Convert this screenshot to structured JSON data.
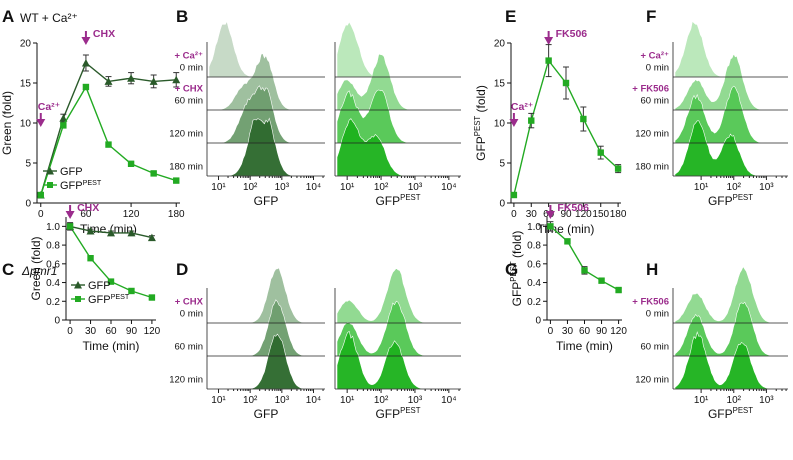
{
  "colors": {
    "purple": "#9b2c8c",
    "gfp": "#2a5a2a",
    "pest": "#22aa22",
    "axis": "#111111",
    "hist_gfp": [
      "#c6d9c6",
      "#9cbe9c",
      "#6f9e6f",
      "#2f6b2f"
    ],
    "hist_pest": [
      "#b9e8b9",
      "#8fd98f",
      "#55c855",
      "#1fb31f"
    ]
  },
  "chart_data": [
    {
      "id": "A",
      "type": "line",
      "panel_label": "A",
      "title": "WT + Ca²⁺",
      "xlabel": "Time (min)",
      "ylabel": "Green (fold)",
      "xlim": [
        -5,
        185
      ],
      "ylim": [
        0,
        20
      ],
      "xticks": [
        "0",
        "60",
        "120",
        "180"
      ],
      "yticks": [
        "0",
        "5",
        "10",
        "15",
        "20"
      ],
      "annotations": [
        {
          "text": "Ca²⁺",
          "x": 0
        },
        {
          "text": "CHX",
          "x": 60
        }
      ],
      "series": [
        {
          "name": "GFP",
          "legend_label": "GFP",
          "marker": "triangle",
          "x": [
            0,
            30,
            60,
            90,
            120,
            150,
            180
          ],
          "y": [
            1.0,
            10.6,
            17.5,
            15.2,
            15.6,
            15.2,
            15.4
          ],
          "err": [
            0.3,
            0.5,
            1.0,
            0.6,
            0.7,
            0.8,
            0.9
          ]
        },
        {
          "name": "GFPPEST",
          "legend_label": "GFP",
          "legend_sup": "PEST",
          "marker": "square",
          "x": [
            0,
            30,
            60,
            90,
            120,
            150,
            180
          ],
          "y": [
            1.0,
            9.7,
            14.5,
            7.3,
            4.9,
            3.7,
            2.8
          ],
          "err": [
            0.2,
            0.3,
            0.3,
            0.3,
            0.2,
            0.2,
            0.2
          ]
        }
      ]
    },
    {
      "id": "C",
      "type": "line",
      "panel_label": "C",
      "title": "Δpmr1",
      "xlabel": "Time (min)",
      "ylabel": "Green (fold)",
      "xlim": [
        -6,
        126
      ],
      "ylim": [
        0,
        1.1
      ],
      "xticks": [
        "0",
        "30",
        "60",
        "90",
        "120"
      ],
      "yticks": [
        "0",
        "0.2",
        "0.4",
        "0.6",
        "0.8",
        "1.0"
      ],
      "annotations": [
        {
          "text": "CHX",
          "x": 0
        }
      ],
      "series": [
        {
          "name": "GFP",
          "legend_label": "GFP",
          "marker": "triangle",
          "x": [
            0,
            30,
            60,
            90,
            120
          ],
          "y": [
            1.0,
            0.95,
            0.93,
            0.93,
            0.88
          ],
          "err": [
            0.03,
            0.02,
            0.02,
            0.02,
            0.02
          ]
        },
        {
          "name": "GFPPEST",
          "legend_label": "GFP",
          "legend_sup": "PEST",
          "marker": "square",
          "x": [
            0,
            30,
            60,
            90,
            120
          ],
          "y": [
            1.0,
            0.66,
            0.41,
            0.31,
            0.24
          ],
          "err": [
            0.04,
            0.02,
            0.02,
            0.02,
            0.02
          ]
        }
      ]
    },
    {
      "id": "E",
      "type": "line",
      "panel_label": "E",
      "title": "",
      "xlabel": "Time (min)",
      "ylabel": "GFP",
      "ylabel_sup": "PEST",
      "ylabel_tail": " (fold)",
      "xlim": [
        -5,
        185
      ],
      "ylim": [
        0,
        20
      ],
      "xticks": [
        "0",
        "30",
        "60",
        "90",
        "120",
        "150",
        "180"
      ],
      "yticks": [
        "0",
        "5",
        "10",
        "15",
        "20"
      ],
      "annotations": [
        {
          "text": "Ca²⁺",
          "x": 0
        },
        {
          "text": "FK506",
          "x": 60
        }
      ],
      "series": [
        {
          "name": "GFPPEST",
          "marker": "square",
          "x": [
            0,
            30,
            60,
            90,
            120,
            150,
            180
          ],
          "y": [
            1.0,
            10.3,
            17.8,
            15.0,
            10.5,
            6.3,
            4.3
          ],
          "err": [
            0.3,
            0.9,
            2.0,
            2.0,
            1.5,
            0.8,
            0.5
          ]
        }
      ]
    },
    {
      "id": "G",
      "type": "line",
      "panel_label": "G",
      "title": "",
      "xlabel": "Time (min)",
      "ylabel": "GFP",
      "ylabel_sup": "PEST",
      "ylabel_tail": " (fold)",
      "xlim": [
        -6,
        126
      ],
      "ylim": [
        0,
        1.1
      ],
      "xticks": [
        "0",
        "30",
        "60",
        "90",
        "120"
      ],
      "yticks": [
        "0",
        "0.2",
        "0.4",
        "0.6",
        "0.8",
        "1.0"
      ],
      "annotations": [
        {
          "text": "FK506",
          "x": 0
        }
      ],
      "series": [
        {
          "name": "GFPPEST",
          "marker": "square",
          "x": [
            0,
            30,
            60,
            90,
            120
          ],
          "y": [
            1.0,
            0.84,
            0.53,
            0.42,
            0.32
          ],
          "err": [
            0.05,
            0.02,
            0.04,
            0.02,
            0.02
          ]
        }
      ]
    },
    {
      "id": "B",
      "type": "histogram-stack",
      "panel_label": "B",
      "rows": [
        {
          "lead": "+ Ca²⁺",
          "label": "0 min"
        },
        {
          "lead": "+ CHX",
          "label": "60 min"
        },
        {
          "lead": "",
          "label": "120 min"
        },
        {
          "lead": "",
          "label": "180 min"
        }
      ],
      "subpanels": [
        {
          "xlabel": "GFP",
          "xlabel_sup": "",
          "xticks": [
            "10¹",
            "10²",
            "10³",
            "10⁴"
          ],
          "xdecades": [
            1,
            4
          ],
          "color": "gfp",
          "profiles": [
            [
              [
                1.2,
                1.0
              ]
            ],
            [
              [
                1.8,
                0.42
              ],
              [
                2.45,
                1.0
              ]
            ],
            [
              [
                1.9,
                0.62
              ],
              [
                2.45,
                1.0
              ]
            ],
            [
              [
                2.15,
                0.72
              ],
              [
                2.5,
                1.0
              ]
            ]
          ]
        },
        {
          "xlabel": "GFP",
          "xlabel_sup": "PEST",
          "xticks": [
            "10¹",
            "10²",
            "10³",
            "10⁴"
          ],
          "xdecades": [
            1,
            4
          ],
          "color": "pest",
          "profiles": [
            [
              [
                1.05,
                1.0
              ]
            ],
            [
              [
                1.0,
                0.55
              ],
              [
                2.0,
                1.0
              ]
            ],
            [
              [
                1.05,
                0.9
              ],
              [
                1.95,
                1.0
              ]
            ],
            [
              [
                1.1,
                1.0
              ],
              [
                1.85,
                0.72
              ]
            ]
          ]
        }
      ]
    },
    {
      "id": "D",
      "type": "histogram-stack",
      "panel_label": "D",
      "rows": [
        {
          "lead": "+ CHX",
          "label": "0 min"
        },
        {
          "lead": "",
          "label": "60 min"
        },
        {
          "lead": "",
          "label": "120 min"
        }
      ],
      "subpanels": [
        {
          "xlabel": "GFP",
          "xlabel_sup": "",
          "xticks": [
            "10¹",
            "10²",
            "10³",
            "10⁴"
          ],
          "xdecades": [
            1,
            4
          ],
          "color": "gfp",
          "profiles": [
            [
              [
                2.85,
                1.0
              ]
            ],
            [
              [
                2.85,
                1.0
              ]
            ],
            [
              [
                2.85,
                1.0
              ]
            ]
          ]
        },
        {
          "xlabel": "GFP",
          "xlabel_sup": "PEST",
          "xticks": [
            "10¹",
            "10²",
            "10³",
            "10⁴"
          ],
          "xdecades": [
            1,
            4
          ],
          "color": "pest",
          "profiles": [
            [
              [
                1.05,
                0.42
              ],
              [
                2.45,
                1.0
              ]
            ],
            [
              [
                1.05,
                0.62
              ],
              [
                2.45,
                1.0
              ]
            ],
            [
              [
                1.05,
                1.0
              ],
              [
                2.4,
                0.85
              ]
            ]
          ]
        }
      ]
    },
    {
      "id": "F",
      "type": "histogram-stack",
      "panel_label": "F",
      "rows": [
        {
          "lead": "+ Ca²⁺",
          "label": "0 min"
        },
        {
          "lead": "+ FK506",
          "label": "60 min"
        },
        {
          "lead": "",
          "label": "120 min"
        },
        {
          "lead": "",
          "label": "180 min"
        }
      ],
      "subpanels": [
        {
          "xlabel": "GFP",
          "xlabel_sup": "PEST",
          "xticks": [
            "10¹",
            "10²",
            "10³"
          ],
          "xdecades": [
            0.5,
            3.3
          ],
          "color": "pest",
          "profiles": [
            [
              [
                0.8,
                1.0
              ]
            ],
            [
              [
                0.85,
                0.55
              ],
              [
                2.0,
                1.0
              ]
            ],
            [
              [
                0.85,
                0.85
              ],
              [
                2.0,
                1.0
              ]
            ],
            [
              [
                0.9,
                1.0
              ],
              [
                1.9,
                0.75
              ]
            ]
          ]
        }
      ]
    },
    {
      "id": "H",
      "type": "histogram-stack",
      "panel_label": "H",
      "rows": [
        {
          "lead": "+ FK506",
          "label": "0 min"
        },
        {
          "lead": "",
          "label": "60 min"
        },
        {
          "lead": "",
          "label": "120 min"
        }
      ],
      "subpanels": [
        {
          "xlabel": "GFP",
          "xlabel_sup": "PEST",
          "xticks": [
            "10¹",
            "10²",
            "10³"
          ],
          "xdecades": [
            0.5,
            3.3
          ],
          "color": "pest",
          "profiles": [
            [
              [
                0.85,
                0.55
              ],
              [
                2.3,
                1.0
              ]
            ],
            [
              [
                0.85,
                0.75
              ],
              [
                2.3,
                1.0
              ]
            ],
            [
              [
                0.9,
                1.0
              ],
              [
                2.25,
                0.85
              ]
            ]
          ]
        }
      ]
    }
  ]
}
